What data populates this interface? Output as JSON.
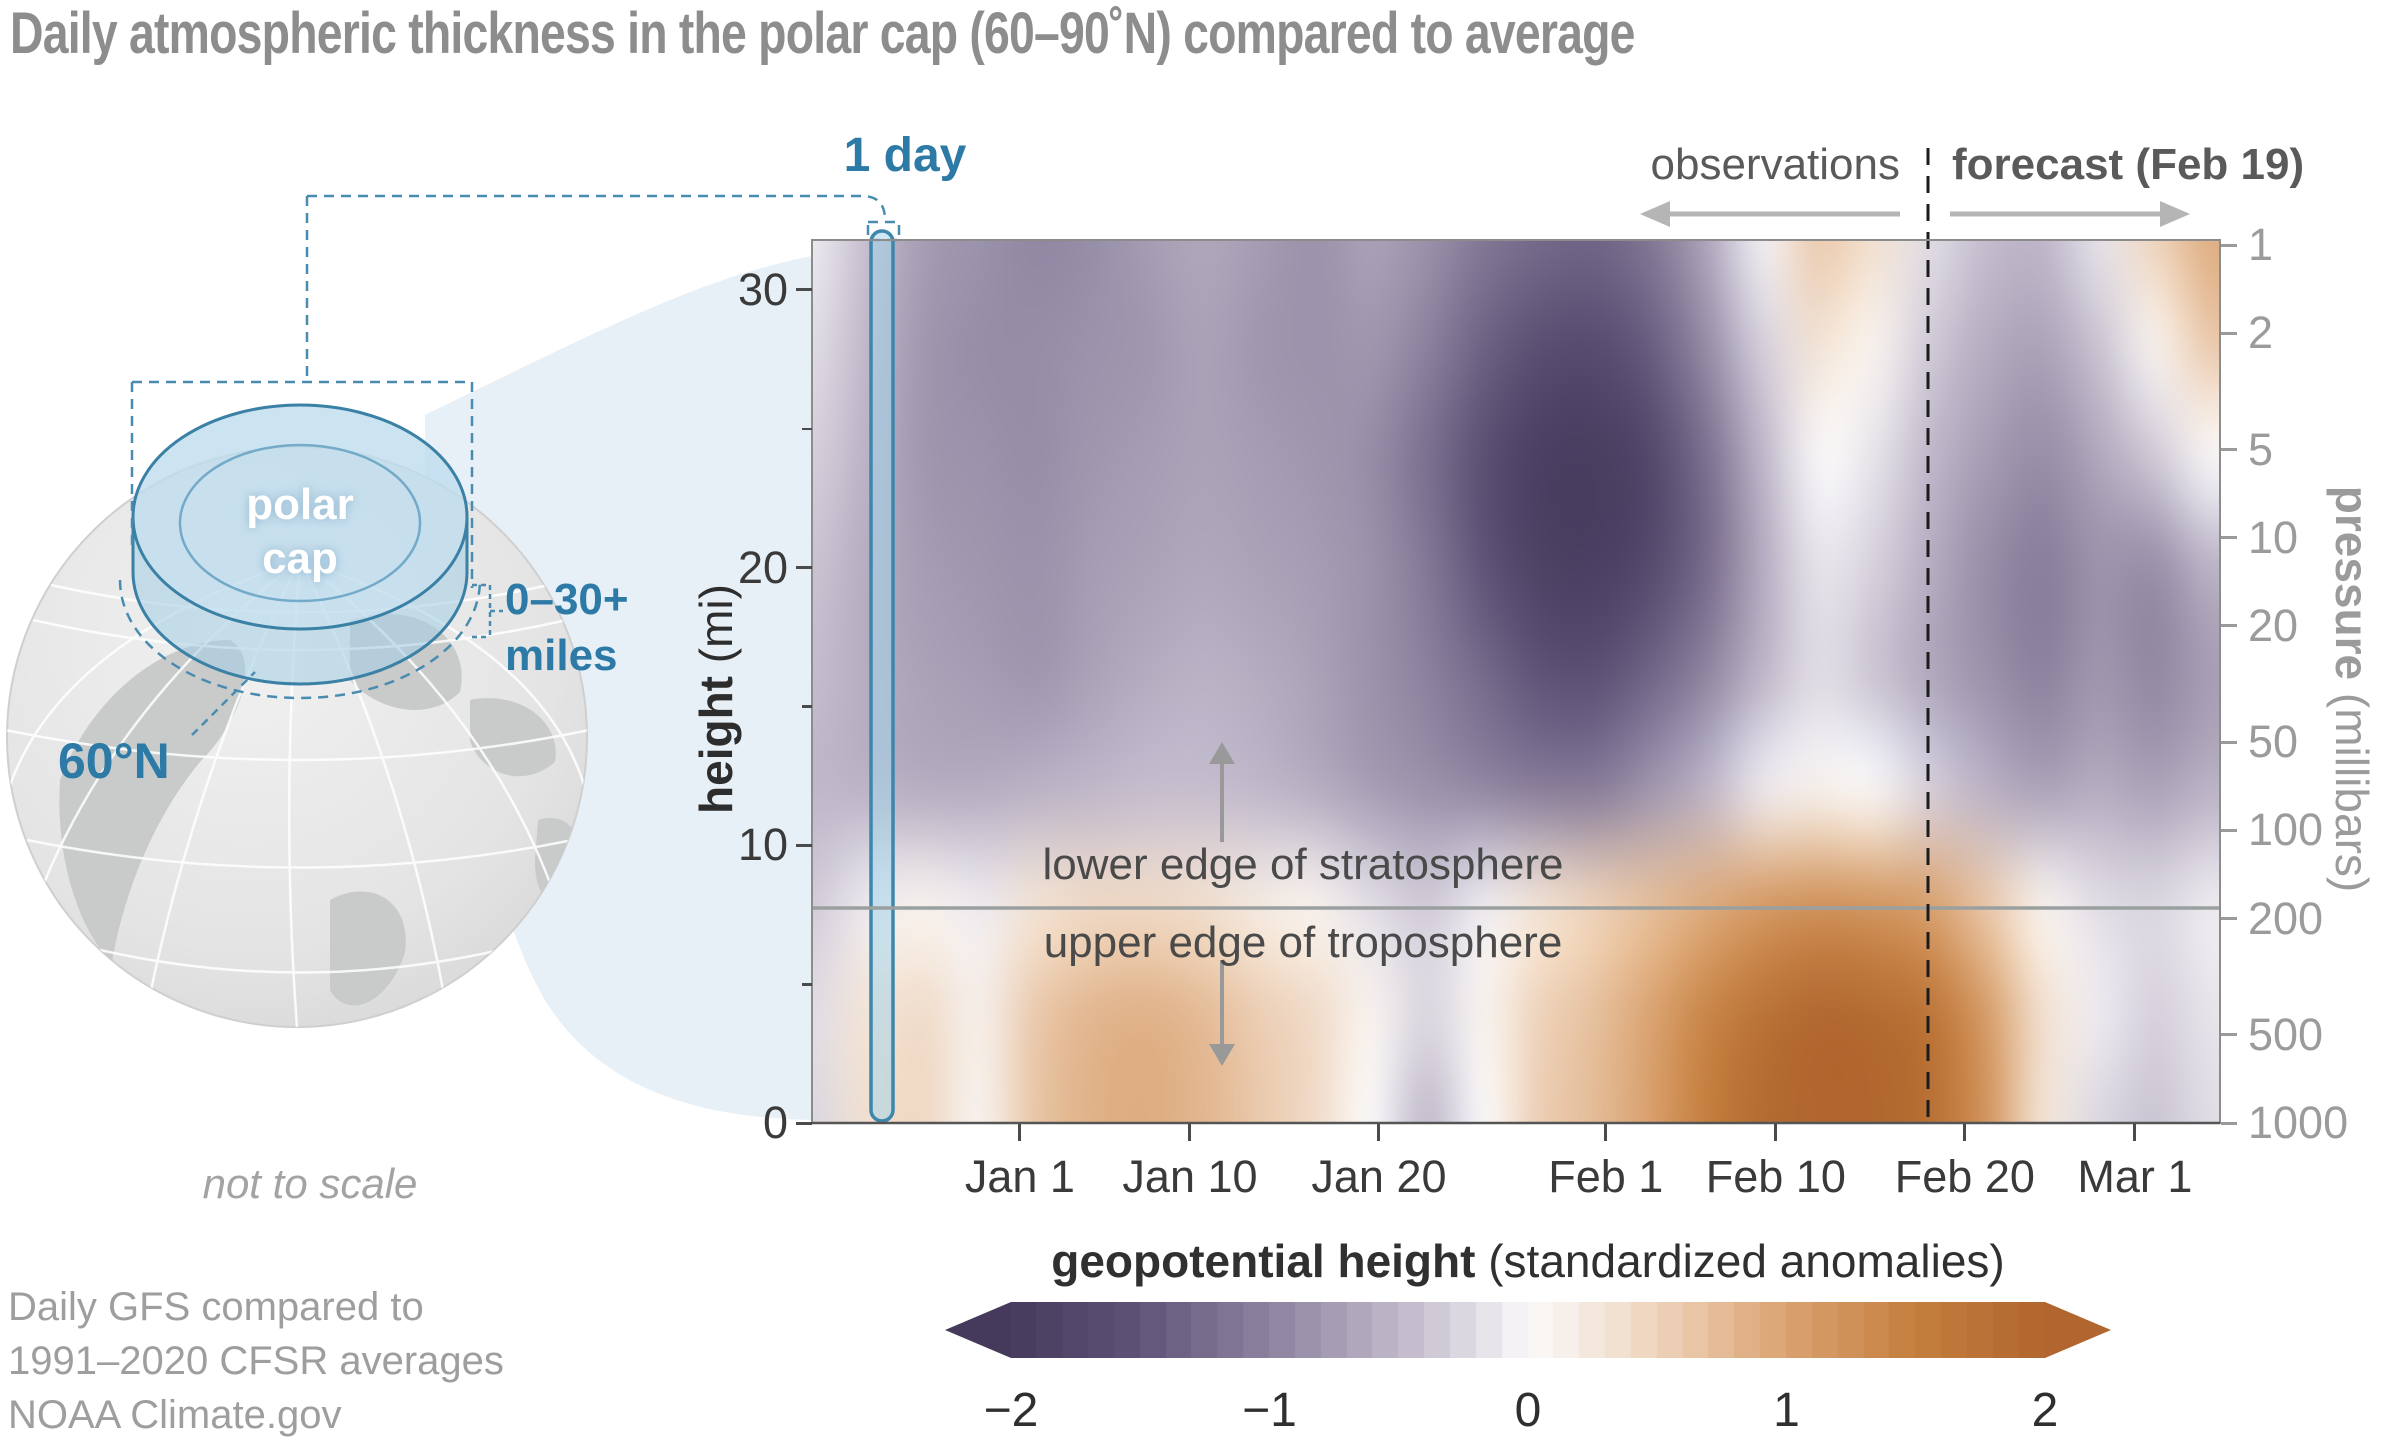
{
  "title": "Daily atmospheric thickness in the polar cap (60–90˚N) compared to average",
  "annotations": {
    "observations": "observations",
    "forecast": "forecast (Feb 19)",
    "one_day": "1 day",
    "polar_cap_line1": "polar",
    "polar_cap_line2": "cap",
    "sixty_north": "60°N",
    "miles_line1": "0–30+",
    "miles_line2": "miles",
    "not_to_scale": "not to scale",
    "stratosphere": "lower edge of stratosphere",
    "troposphere": "upper edge of troposphere"
  },
  "credit": {
    "line1": "Daily GFS compared to",
    "line2": "1991–2020 CFSR averages",
    "line3": "NOAA Climate.gov"
  },
  "colors": {
    "accent_blue": "#2c7aa5",
    "cap_fill": "#bedcee",
    "funnel": "#e7f0f7",
    "negative_end": "#453a5c",
    "positive_end": "#b0662e",
    "frame_gray": "#8c8c8c"
  },
  "chart_data": {
    "type": "heatmap",
    "quantity": "geopotential height standardized anomaly",
    "value_range": [
      -2,
      2
    ],
    "forecast_start_label": "Feb 19",
    "tropopause_pressure_mb": 200,
    "height_axis": {
      "label_bold": "height",
      "label_unit": " (mi)",
      "ticks": [
        30,
        20,
        10,
        0
      ],
      "minor_ticks": [
        25,
        15,
        5
      ]
    },
    "pressure_axis": {
      "label_bold": "pressure",
      "label_unit": " (millibars)",
      "ticks": [
        1,
        2,
        5,
        10,
        20,
        50,
        100,
        200,
        500,
        1000
      ]
    },
    "date_axis": {
      "ticks": [
        {
          "label": "Jan 1",
          "day": 0
        },
        {
          "label": "Jan 10",
          "day": 9
        },
        {
          "label": "Jan 20",
          "day": 19
        },
        {
          "label": "Feb 1",
          "day": 31
        },
        {
          "label": "Feb 10",
          "day": 40
        },
        {
          "label": "Feb 20",
          "day": 50
        },
        {
          "label": "Mar 1",
          "day": 59
        }
      ]
    },
    "legend": {
      "title_bold": "geopotential height",
      "title_rest": " (standardized anomalies)",
      "tick_labels": [
        "−2",
        "−1",
        "0",
        "1",
        "2"
      ],
      "tick_values": [
        -2,
        -1,
        0,
        1,
        2
      ]
    },
    "colormap": [
      {
        "v": -2.0,
        "color": [
          69,
          58,
          92
        ]
      },
      {
        "v": -1.5,
        "color": [
          95,
          84,
          120
        ]
      },
      {
        "v": -1.0,
        "color": [
          140,
          130,
          158
        ]
      },
      {
        "v": -0.5,
        "color": [
          191,
          183,
          201
        ]
      },
      {
        "v": -0.2,
        "color": [
          225,
          221,
          229
        ]
      },
      {
        "v": 0.0,
        "color": [
          250,
          249,
          250
        ]
      },
      {
        "v": 0.2,
        "color": [
          245,
          236,
          228
        ]
      },
      {
        "v": 0.5,
        "color": [
          238,
          211,
          187
        ]
      },
      {
        "v": 1.0,
        "color": [
          218,
          163,
          113
        ]
      },
      {
        "v": 1.5,
        "color": [
          196,
          126,
          61
        ]
      },
      {
        "v": 2.0,
        "color": [
          176,
          102,
          46
        ]
      }
    ],
    "grid_days_from_jan1": [
      -11,
      -8,
      -5,
      -2,
      1,
      4,
      7,
      10,
      13,
      16,
      19,
      22,
      25,
      28,
      31,
      34,
      37,
      40,
      43,
      46,
      49,
      52,
      55,
      58,
      61,
      63
    ],
    "grid_heights_mi": [
      32,
      28,
      24,
      20,
      16,
      12,
      8,
      4,
      0
    ],
    "anomaly_grid": [
      [
        -0.1,
        -0.45,
        -0.75,
        -0.85,
        -0.95,
        -0.9,
        -0.75,
        -0.65,
        -0.75,
        -0.85,
        -0.7,
        -0.85,
        -1.1,
        -1.25,
        -1.3,
        -1.1,
        -0.65,
        -0.05,
        0.6,
        0.35,
        -0.2,
        -0.45,
        -0.5,
        -0.15,
        0.5,
        0.9
      ],
      [
        -0.2,
        -0.5,
        -0.8,
        -0.9,
        -0.9,
        -0.85,
        -0.8,
        -0.7,
        -0.8,
        -0.85,
        -0.8,
        -1.0,
        -1.35,
        -1.6,
        -1.65,
        -1.4,
        -0.9,
        -0.3,
        0.3,
        0.1,
        -0.35,
        -0.6,
        -0.7,
        -0.4,
        0.1,
        0.6
      ],
      [
        -0.3,
        -0.55,
        -0.8,
        -0.85,
        -0.9,
        -0.8,
        -0.75,
        -0.7,
        -0.75,
        -0.8,
        -0.9,
        -1.2,
        -1.6,
        -1.9,
        -1.95,
        -1.75,
        -1.2,
        -0.5,
        0.0,
        -0.15,
        -0.5,
        -0.75,
        -0.9,
        -0.65,
        -0.35,
        0.0
      ],
      [
        -0.4,
        -0.6,
        -0.75,
        -0.8,
        -0.85,
        -0.75,
        -0.7,
        -0.65,
        -0.7,
        -0.75,
        -0.85,
        -1.1,
        -1.5,
        -1.85,
        -1.9,
        -1.7,
        -1.25,
        -0.6,
        -0.15,
        -0.3,
        -0.6,
        -0.9,
        -1.05,
        -0.85,
        -0.9,
        -0.55
      ],
      [
        -0.45,
        -0.6,
        -0.7,
        -0.75,
        -0.8,
        -0.7,
        -0.6,
        -0.55,
        -0.6,
        -0.7,
        -0.85,
        -1.0,
        -1.25,
        -1.5,
        -1.55,
        -1.3,
        -0.95,
        -0.5,
        -0.2,
        -0.4,
        -0.65,
        -0.85,
        -1.0,
        -0.8,
        -0.95,
        -0.75
      ],
      [
        -0.5,
        -0.55,
        -0.6,
        -0.6,
        -0.55,
        -0.5,
        -0.45,
        -0.45,
        -0.5,
        -0.6,
        -0.75,
        -0.85,
        -0.95,
        -1.05,
        -1.05,
        -0.8,
        -0.5,
        -0.1,
        0.1,
        0.0,
        -0.3,
        -0.55,
        -0.7,
        -0.6,
        -0.7,
        -0.55
      ],
      [
        -0.35,
        -0.1,
        0.1,
        -0.1,
        0.3,
        0.4,
        0.4,
        0.35,
        0.2,
        0.1,
        -0.2,
        -0.35,
        -0.1,
        0.3,
        0.5,
        0.7,
        0.9,
        1.1,
        1.2,
        1.15,
        1.0,
        0.6,
        0.1,
        -0.2,
        -0.25,
        -0.1
      ],
      [
        -0.2,
        0.3,
        0.4,
        0.15,
        0.6,
        0.8,
        0.85,
        0.75,
        0.55,
        0.4,
        0.1,
        -0.25,
        0.1,
        0.5,
        0.7,
        1.0,
        1.4,
        1.75,
        1.95,
        1.9,
        1.7,
        1.1,
        0.35,
        -0.1,
        -0.3,
        -0.15
      ],
      [
        -0.25,
        0.35,
        0.45,
        0.1,
        0.65,
        0.85,
        0.9,
        0.8,
        0.6,
        0.4,
        0.0,
        -0.5,
        0.0,
        0.55,
        0.75,
        1.05,
        1.5,
        1.9,
        2.05,
        2.0,
        1.8,
        1.2,
        0.3,
        -0.25,
        -0.4,
        -0.2
      ]
    ]
  }
}
